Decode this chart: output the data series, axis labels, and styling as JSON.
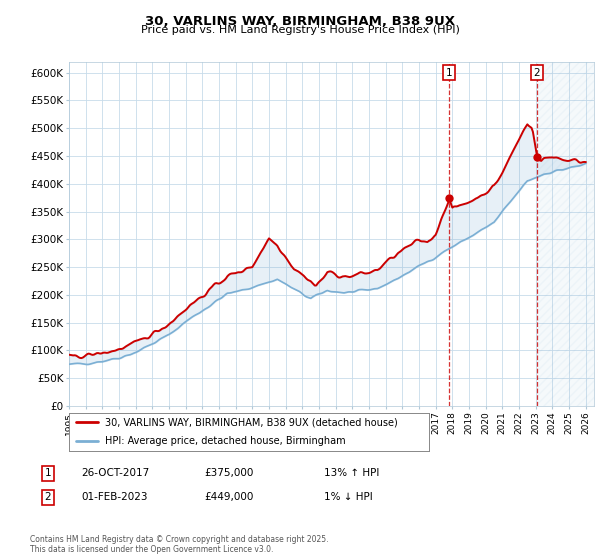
{
  "title": "30, VARLINS WAY, BIRMINGHAM, B38 9UX",
  "subtitle": "Price paid vs. HM Land Registry's House Price Index (HPI)",
  "ylim": [
    0,
    620000
  ],
  "yticks": [
    0,
    50000,
    100000,
    150000,
    200000,
    250000,
    300000,
    350000,
    400000,
    450000,
    500000,
    550000,
    600000
  ],
  "ytick_labels": [
    "£0",
    "£50K",
    "£100K",
    "£150K",
    "£200K",
    "£250K",
    "£300K",
    "£350K",
    "£400K",
    "£450K",
    "£500K",
    "£550K",
    "£600K"
  ],
  "hpi_line_color": "#7bafd4",
  "price_line_color": "#cc0000",
  "background_color": "#ffffff",
  "plot_bg_color": "#ffffff",
  "grid_color": "#c8dcea",
  "marker1_date": "26-OCT-2017",
  "marker1_price": 375000,
  "marker1_hpi": "13%",
  "marker1_dir": "↑",
  "marker2_date": "01-FEB-2023",
  "marker2_price": 449000,
  "marker2_hpi": "1%",
  "marker2_dir": "↓",
  "marker1_x": 2017.82,
  "marker2_x": 2023.08,
  "legend_label1": "30, VARLINS WAY, BIRMINGHAM, B38 9UX (detached house)",
  "legend_label2": "HPI: Average price, detached house, Birmingham",
  "footnote": "Contains HM Land Registry data © Crown copyright and database right 2025.\nThis data is licensed under the Open Government Licence v3.0.",
  "xtick_years": [
    1995,
    1996,
    1997,
    1998,
    1999,
    2000,
    2001,
    2002,
    2003,
    2004,
    2005,
    2006,
    2007,
    2008,
    2009,
    2010,
    2011,
    2012,
    2013,
    2014,
    2015,
    2016,
    2017,
    2018,
    2019,
    2020,
    2021,
    2022,
    2023,
    2024,
    2025,
    2026
  ]
}
